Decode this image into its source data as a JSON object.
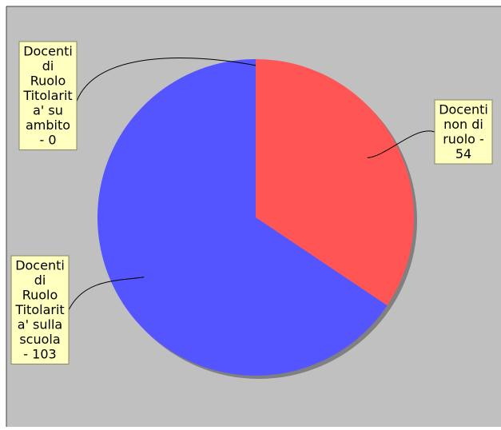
{
  "chart_data": {
    "type": "pie",
    "title": "",
    "slices": [
      {
        "name": "Docenti non di ruolo",
        "value": 54,
        "color": "#ff5555"
      },
      {
        "name": "Docenti di Ruolo Titolarit a' sulla scuola",
        "value": 103,
        "color": "#5555ff"
      },
      {
        "name": "Docenti di Ruolo Titolarit a' su ambito",
        "value": 0,
        "color": "#55ff55"
      }
    ],
    "labels": [
      {
        "slice": 0,
        "lines": [
          "Docenti",
          "non di",
          "ruolo -",
          "54"
        ]
      },
      {
        "slice": 1,
        "lines": [
          "Docenti",
          "di",
          "Ruolo",
          "Titolarit",
          "a' sulla",
          "scuola",
          "- 103"
        ]
      },
      {
        "slice": 2,
        "lines": [
          "Docenti",
          "di",
          "Ruolo",
          "Titolarit",
          "a' su",
          "ambito",
          "- 0"
        ]
      }
    ],
    "start_angle": "12 o'clock",
    "direction": "clockwise",
    "legend": "none",
    "colors": {
      "background": "#c0c0c0",
      "label_fill": "#ffffc0",
      "label_border": "#888866",
      "shadow": "#808080",
      "leader": "#000000"
    }
  }
}
